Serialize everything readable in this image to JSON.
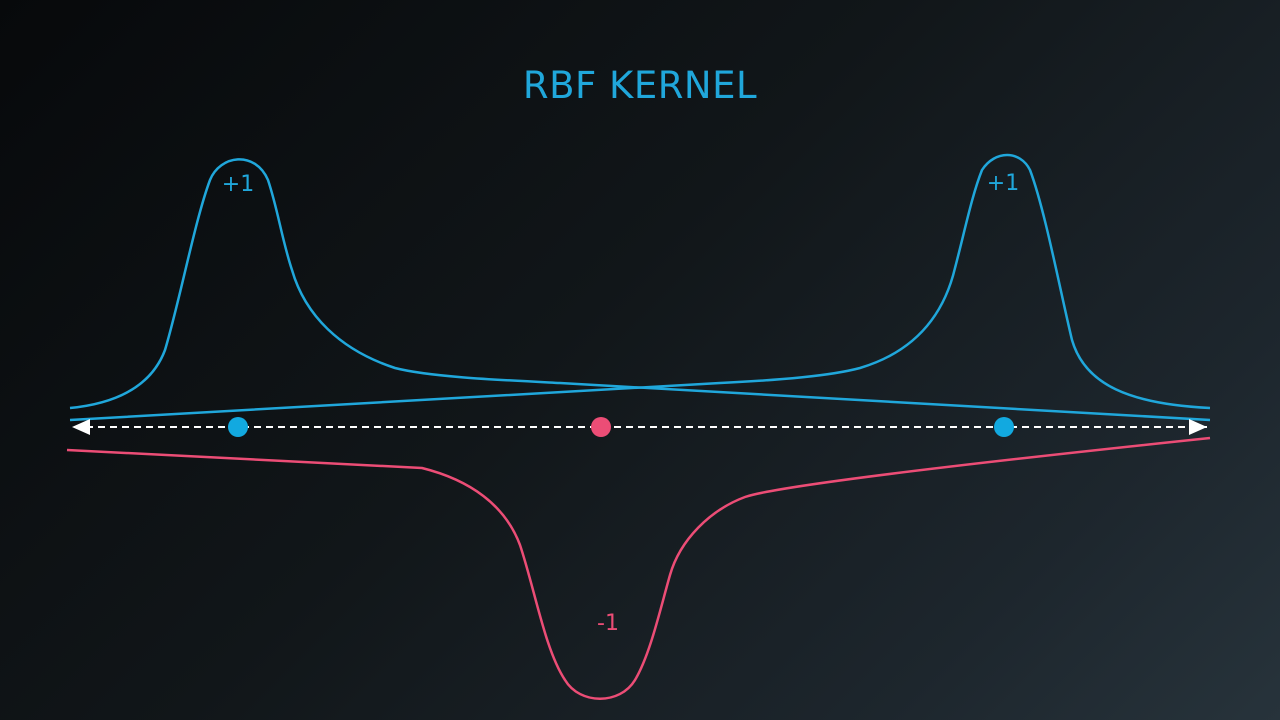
{
  "title": "RBF KERNEL",
  "colors": {
    "positive": "#20a7db",
    "negative": "#ec4d76",
    "axis": "#ffffff",
    "title": "#20a7db"
  },
  "labels": {
    "peak_left": "+1",
    "peak_right": "+1",
    "trough": "-1"
  },
  "points": [
    {
      "class": "positive",
      "color_key": "positive"
    },
    {
      "class": "negative",
      "color_key": "negative"
    },
    {
      "class": "positive",
      "color_key": "positive"
    }
  ]
}
